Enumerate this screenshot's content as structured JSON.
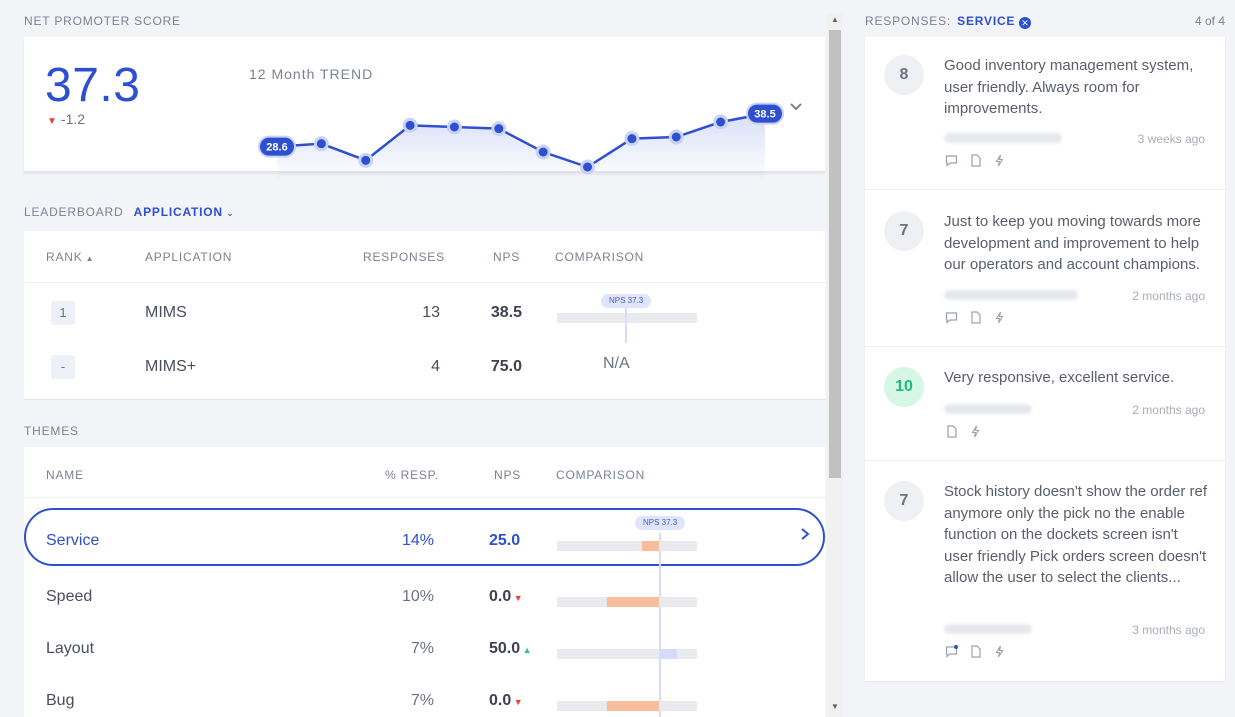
{
  "nps": {
    "section_label": "NET PROMOTER SCORE",
    "score": "37.3",
    "delta": "-1.2",
    "trend_title": "12 Month TREND",
    "trend_values": [
      28.6,
      29.5,
      24.5,
      35.0,
      34.5,
      34.0,
      27.0,
      22.5,
      31.0,
      31.5,
      36.0,
      38.5
    ],
    "trend_start_label": "28.6",
    "trend_end_label": "38.5",
    "accent": "#2d4fd0"
  },
  "leaderboard": {
    "label": "LEADERBOARD",
    "filter": "APPLICATION",
    "headers": {
      "rank": "RANK",
      "application": "APPLICATION",
      "responses": "RESPONSES",
      "nps": "NPS",
      "comparison": "COMPARISON"
    },
    "rows": [
      {
        "rank": "1",
        "name": "MIMS",
        "responses": "13",
        "nps": "38.5",
        "comparison": ""
      },
      {
        "rank": "-",
        "name": "MIMS+",
        "responses": "4",
        "nps": "75.0",
        "comparison": "N/A"
      }
    ],
    "nps_pill": "NPS 37.3"
  },
  "themes": {
    "label": "THEMES",
    "headers": {
      "name": "NAME",
      "resp": "% RESP.",
      "nps": "NPS",
      "comparison": "COMPARISON"
    },
    "nps_pill": "NPS 37.3",
    "rows": [
      {
        "name": "Service",
        "resp": "14%",
        "nps": "25.0",
        "trend": "",
        "value": 25.0
      },
      {
        "name": "Speed",
        "resp": "10%",
        "nps": "0.0",
        "trend": "down",
        "value": 0.0
      },
      {
        "name": "Layout",
        "resp": "7%",
        "nps": "50.0",
        "trend": "up",
        "value": 50.0
      },
      {
        "name": "Bug",
        "resp": "7%",
        "nps": "0.0",
        "trend": "down",
        "value": 0.0
      }
    ]
  },
  "responses": {
    "label": "RESPONSES:",
    "filter": "SERVICE",
    "count": "4 of 4",
    "items": [
      {
        "score": "8",
        "text": "Good inventory management system, user friendly. Always room for improvements.",
        "time": "3 weeks ago"
      },
      {
        "score": "7",
        "text": "Just to keep you moving towards more development and improvement to help our operators and account champions.",
        "time": "2 months ago"
      },
      {
        "score": "10",
        "text": "Very responsive, excellent service.",
        "time": "2 months ago"
      },
      {
        "score": "7",
        "text": "Stock history doesn't show the order ref anymore only the pick no  the enable function on the dockets screen isn't user friendly  Pick orders screen doesn't allow the user to select the clients...",
        "time": "3 months ago"
      }
    ]
  }
}
